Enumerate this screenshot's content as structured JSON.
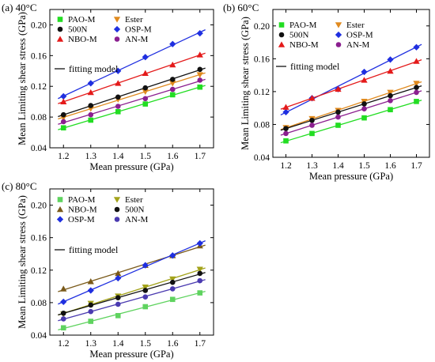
{
  "chart_data": [
    {
      "type": "scatter",
      "title": "(a) 40°C",
      "xlabel": "Mean pressure (GPa)",
      "ylabel": "Mean Limiting shear stress (GPa)",
      "xlim": [
        1.15,
        1.75
      ],
      "ylim": [
        0.04,
        0.22
      ],
      "xticks": [
        "1.2",
        "1.3",
        "1.4",
        "1.5",
        "1.6",
        "1.7"
      ],
      "yticks": [
        "0.04",
        "0.08",
        "0.12",
        "0.16",
        "0.20"
      ],
      "x": [
        1.2,
        1.3,
        1.4,
        1.5,
        1.6,
        1.7
      ],
      "fit_label": "fitting model",
      "series": [
        {
          "name": "PAO-M",
          "color": "#22dd22",
          "marker": "square",
          "values": [
            0.066,
            0.076,
            0.087,
            0.097,
            0.109,
            0.119
          ]
        },
        {
          "name": "Ester",
          "color": "#e08a1e",
          "marker": "tri-down",
          "values": [
            0.079,
            0.091,
            0.103,
            0.113,
            0.124,
            0.135
          ]
        },
        {
          "name": "500N",
          "color": "#111111",
          "marker": "circle",
          "values": [
            0.083,
            0.095,
            0.106,
            0.118,
            0.129,
            0.142
          ]
        },
        {
          "name": "OSP-M",
          "color": "#1f2fe0",
          "marker": "diamond",
          "values": [
            0.107,
            0.124,
            0.14,
            0.158,
            0.175,
            0.189
          ]
        },
        {
          "name": "NBO-M",
          "color": "#e41a1a",
          "marker": "tri-up",
          "values": [
            0.1,
            0.112,
            0.124,
            0.137,
            0.148,
            0.161
          ]
        },
        {
          "name": "AN-M",
          "color": "#8b1f8f",
          "marker": "circle",
          "values": [
            0.074,
            0.083,
            0.094,
            0.104,
            0.116,
            0.128
          ]
        }
      ]
    },
    {
      "type": "scatter",
      "title": "(b) 60°C",
      "xlabel": "Mean pressure (GPa)",
      "ylabel": "Mean Limiting shear stress (GPa)",
      "xlim": [
        1.15,
        1.75
      ],
      "ylim": [
        0.04,
        0.22
      ],
      "xticks": [
        "1.2",
        "1.3",
        "1.4",
        "1.5",
        "1.6",
        "1.7"
      ],
      "yticks": [
        "0.04",
        "0.08",
        "0.12",
        "0.16",
        "0.20"
      ],
      "x": [
        1.2,
        1.3,
        1.4,
        1.5,
        1.6,
        1.7
      ],
      "fit_label": "fitting model",
      "series": [
        {
          "name": "PAO-M",
          "color": "#22dd22",
          "marker": "square",
          "values": [
            0.06,
            0.069,
            0.079,
            0.088,
            0.098,
            0.108
          ]
        },
        {
          "name": "Ester",
          "color": "#e08a1e",
          "marker": "tri-down",
          "values": [
            0.076,
            0.087,
            0.097,
            0.108,
            0.119,
            0.13
          ]
        },
        {
          "name": "500N",
          "color": "#111111",
          "marker": "circle",
          "values": [
            0.075,
            0.085,
            0.095,
            0.105,
            0.115,
            0.125
          ]
        },
        {
          "name": "OSP-M",
          "color": "#1f2fe0",
          "marker": "diamond",
          "values": [
            0.095,
            0.112,
            0.123,
            0.144,
            0.159,
            0.174
          ]
        },
        {
          "name": "NBO-M",
          "color": "#e41a1a",
          "marker": "tri-up",
          "values": [
            0.101,
            0.112,
            0.123,
            0.134,
            0.145,
            0.157
          ]
        },
        {
          "name": "AN-M",
          "color": "#8b1f8f",
          "marker": "circle",
          "values": [
            0.069,
            0.079,
            0.089,
            0.099,
            0.109,
            0.119
          ]
        }
      ]
    },
    {
      "type": "scatter",
      "title": "(c) 80°C",
      "xlabel": "Mean pressure (GPa)",
      "ylabel": "Mean Limiting shear stress (GPa)",
      "xlim": [
        1.15,
        1.75
      ],
      "ylim": [
        0.04,
        0.22
      ],
      "xticks": [
        "1.2",
        "1.3",
        "1.4",
        "1.5",
        "1.6",
        "1.7"
      ],
      "yticks": [
        "0.04",
        "0.08",
        "0.12",
        "0.16",
        "0.20"
      ],
      "x": [
        1.2,
        1.3,
        1.4,
        1.5,
        1.6,
        1.7
      ],
      "fit_label": "fitting model",
      "series": [
        {
          "name": "PAO-M",
          "color": "#5fd35f",
          "marker": "square",
          "values": [
            0.049,
            0.057,
            0.064,
            0.075,
            0.084,
            0.092
          ]
        },
        {
          "name": "Ester",
          "color": "#a3a31a",
          "marker": "tri-down",
          "values": [
            0.066,
            0.079,
            0.088,
            0.099,
            0.109,
            0.121
          ]
        },
        {
          "name": "NBO-M",
          "color": "#7a5a1a",
          "marker": "tri-up",
          "values": [
            0.097,
            0.106,
            0.116,
            0.126,
            0.138,
            0.15
          ]
        },
        {
          "name": "500N",
          "color": "#111111",
          "marker": "circle",
          "values": [
            0.067,
            0.077,
            0.086,
            0.095,
            0.105,
            0.116
          ]
        },
        {
          "name": "OSP-M",
          "color": "#1f2fe0",
          "marker": "diamond",
          "values": [
            0.081,
            0.095,
            0.11,
            0.126,
            0.138,
            0.153
          ]
        },
        {
          "name": "AN-M",
          "color": "#4a3ab0",
          "marker": "circle",
          "values": [
            0.06,
            0.069,
            0.078,
            0.087,
            0.097,
            0.107
          ]
        }
      ]
    }
  ]
}
